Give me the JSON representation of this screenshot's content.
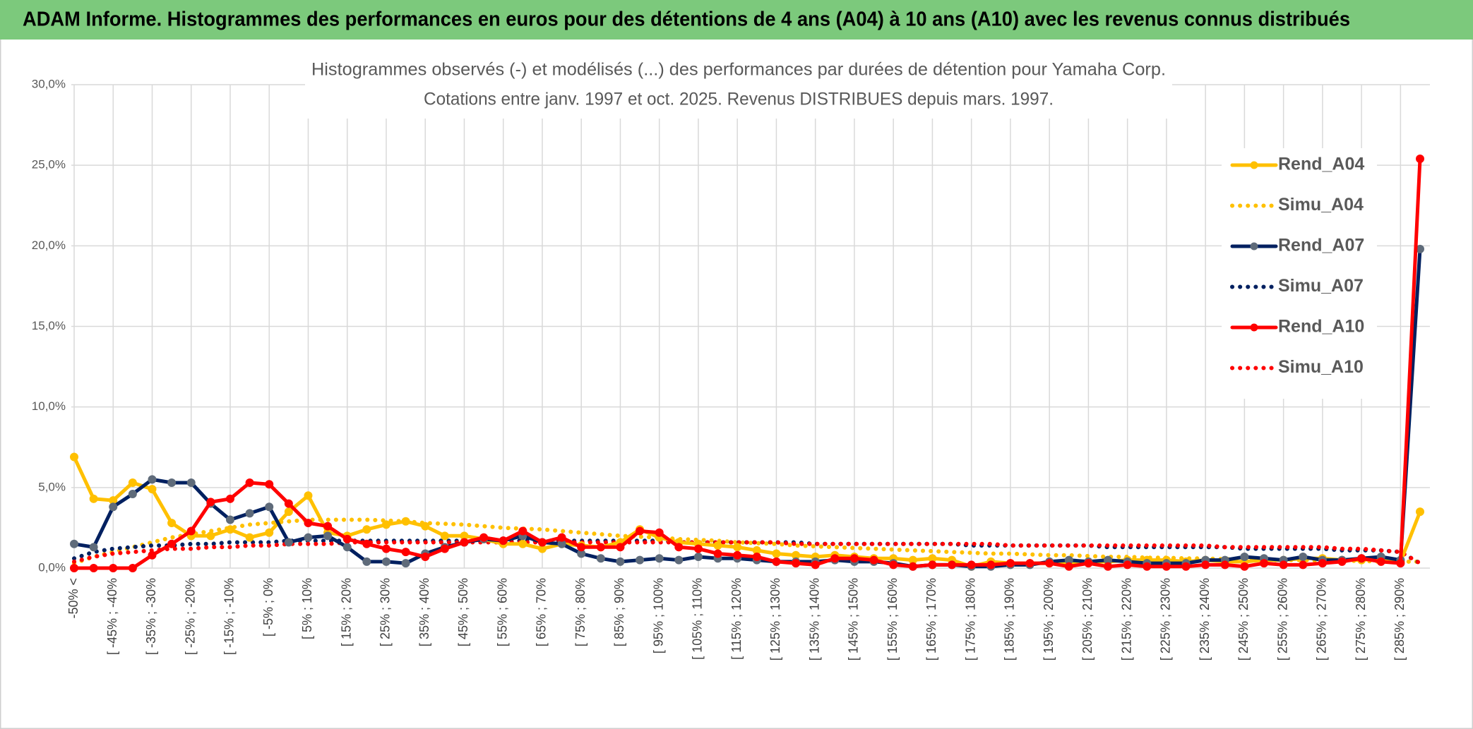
{
  "header": {
    "title": "ADAM Informe. Histogrammes des performances en euros pour des détentions de 4 ans (A04) à 10 ans (A10) avec les revenus connus distribués"
  },
  "chart_data": {
    "type": "line",
    "title": "Histogrammes observés (-) et modélisés (...) des performances par durées de détention pour Yamaha Corp.",
    "subtitle": "Cotations entre janv. 1997 et oct. 2025. Revenus DISTRIBUES depuis mars. 1997.",
    "categories": [
      "-50% <",
      null,
      "[ -45% ; -40%",
      null,
      "[ -35% ; -30%",
      null,
      "[ -25% ; -20%",
      null,
      "[ -15% ; -10%",
      null,
      "[ -5% ; 0%",
      null,
      "[ 5% ; 10%",
      null,
      "[ 15% ; 20%",
      null,
      "[ 25% ; 30%",
      null,
      "[ 35% ; 40%",
      null,
      "[ 45% ; 50%",
      null,
      "[ 55% ; 60%",
      null,
      "[ 65% ; 70%",
      null,
      "[ 75% ; 80%",
      null,
      "[ 85% ; 90%",
      null,
      "[ 95% ; 100%",
      null,
      "[ 105% ; 110%",
      null,
      "[ 115% ; 120%",
      null,
      "[ 125% ; 130%",
      null,
      "[ 135% ; 140%",
      null,
      "[ 145% ; 150%",
      null,
      "[ 155% ; 160%",
      null,
      "[ 165% ; 170%",
      null,
      "[ 175% ; 180%",
      null,
      "[ 185% ; 190%",
      null,
      "[ 195% ; 200%",
      null,
      "[ 205% ; 210%",
      null,
      "[ 215% ; 220%",
      null,
      "[ 225% ; 230%",
      null,
      "[ 235% ; 240%",
      null,
      "[ 245% ; 250%",
      null,
      "[ 255% ; 260%",
      null,
      "[ 265% ; 270%",
      null,
      "[ 275% ; 280%",
      null,
      "[ 285% ; 290%",
      null
    ],
    "series": [
      {
        "name": "Rend_A04",
        "color": "#ffc000",
        "line_style": "solid",
        "marker": true,
        "values": [
          6.9,
          4.3,
          4.2,
          5.3,
          4.9,
          2.8,
          2.0,
          2.0,
          2.4,
          1.9,
          2.2,
          3.5,
          4.5,
          2.2,
          2.0,
          2.4,
          2.7,
          2.9,
          2.6,
          2.0,
          2.0,
          1.8,
          1.5,
          1.5,
          1.2,
          1.5,
          1.4,
          1.3,
          1.6,
          2.4,
          1.9,
          1.6,
          1.5,
          1.4,
          1.3,
          1.1,
          0.9,
          0.8,
          0.7,
          0.8,
          0.7,
          0.6,
          0.6,
          0.5,
          0.6,
          0.5,
          0.1,
          0.4,
          0.3,
          0.3,
          0.3,
          0.3,
          0.4,
          0.4,
          0.5,
          0.5,
          0.5,
          0.4,
          0.5,
          0.4,
          0.4,
          0.5,
          0.5,
          0.6,
          0.6,
          0.5,
          0.5,
          0.6,
          0.4,
          3.5
        ]
      },
      {
        "name": "Simu_A04",
        "color": "#ffc000",
        "line_style": "dotted",
        "marker": false,
        "values": [
          0.3,
          0.7,
          1.0,
          1.3,
          1.6,
          1.9,
          2.1,
          2.3,
          2.5,
          2.7,
          2.8,
          2.9,
          3.0,
          3.0,
          3.0,
          3.0,
          2.95,
          2.9,
          2.8,
          2.75,
          2.7,
          2.6,
          2.5,
          2.45,
          2.4,
          2.3,
          2.2,
          2.1,
          2.0,
          1.95,
          1.9,
          1.8,
          1.75,
          1.7,
          1.6,
          1.55,
          1.5,
          1.4,
          1.35,
          1.3,
          1.25,
          1.2,
          1.15,
          1.1,
          1.05,
          1.0,
          0.95,
          0.9,
          0.9,
          0.85,
          0.8,
          0.8,
          0.75,
          0.7,
          0.7,
          0.65,
          0.65,
          0.6,
          0.6,
          0.55,
          0.55,
          0.5,
          0.5,
          0.5,
          0.45,
          0.45,
          0.45,
          0.4,
          0.4,
          0.4
        ]
      },
      {
        "name": "Rend_A07",
        "color": "#002060",
        "marker_color": "#5f6b7a",
        "line_style": "solid",
        "marker": true,
        "values": [
          1.5,
          1.3,
          3.8,
          4.6,
          5.5,
          5.3,
          5.3,
          4.0,
          3.0,
          3.4,
          3.8,
          1.6,
          1.9,
          2.0,
          1.3,
          0.4,
          0.4,
          0.3,
          0.9,
          1.3,
          1.6,
          1.8,
          1.7,
          2.0,
          1.6,
          1.5,
          0.9,
          0.6,
          0.4,
          0.5,
          0.6,
          0.5,
          0.7,
          0.6,
          0.6,
          0.5,
          0.4,
          0.4,
          0.4,
          0.5,
          0.4,
          0.4,
          0.3,
          0.1,
          0.2,
          0.2,
          0.1,
          0.1,
          0.2,
          0.2,
          0.4,
          0.5,
          0.4,
          0.5,
          0.4,
          0.3,
          0.3,
          0.3,
          0.5,
          0.5,
          0.7,
          0.6,
          0.5,
          0.7,
          0.5,
          0.5,
          0.6,
          0.7,
          0.5,
          19.8
        ]
      },
      {
        "name": "Simu_A07",
        "color": "#002060",
        "line_style": "dotted",
        "marker": false,
        "values": [
          0.6,
          1.0,
          1.2,
          1.3,
          1.4,
          1.4,
          1.5,
          1.5,
          1.6,
          1.6,
          1.6,
          1.7,
          1.7,
          1.7,
          1.7,
          1.7,
          1.7,
          1.7,
          1.7,
          1.7,
          1.7,
          1.7,
          1.7,
          1.7,
          1.7,
          1.7,
          1.7,
          1.7,
          1.7,
          1.7,
          1.7,
          1.6,
          1.6,
          1.6,
          1.6,
          1.6,
          1.6,
          1.6,
          1.5,
          1.5,
          1.5,
          1.5,
          1.5,
          1.5,
          1.5,
          1.5,
          1.4,
          1.4,
          1.4,
          1.4,
          1.4,
          1.4,
          1.4,
          1.3,
          1.3,
          1.3,
          1.3,
          1.3,
          1.3,
          1.3,
          1.2,
          1.2,
          1.2,
          1.2,
          1.2,
          1.1,
          1.1,
          1.1,
          1.0,
          0.3
        ]
      },
      {
        "name": "Rend_A10",
        "color": "#ff0000",
        "line_style": "solid",
        "marker": true,
        "values": [
          0,
          0,
          0,
          0,
          0.8,
          1.5,
          2.3,
          4.1,
          4.3,
          5.3,
          5.2,
          4.0,
          2.8,
          2.6,
          1.8,
          1.5,
          1.2,
          1.0,
          0.7,
          1.2,
          1.6,
          1.9,
          1.7,
          2.3,
          1.6,
          1.9,
          1.3,
          1.3,
          1.3,
          2.3,
          2.2,
          1.3,
          1.2,
          0.9,
          0.8,
          0.7,
          0.4,
          0.3,
          0.2,
          0.6,
          0.6,
          0.5,
          0.2,
          0.1,
          0.2,
          0.2,
          0.2,
          0.2,
          0.3,
          0.3,
          0.3,
          0.1,
          0.3,
          0.1,
          0.2,
          0.1,
          0.1,
          0.1,
          0.2,
          0.2,
          0.1,
          0.3,
          0.2,
          0.2,
          0.3,
          0.4,
          0.6,
          0.4,
          0.3,
          25.4
        ]
      },
      {
        "name": "Simu_A10",
        "color": "#ff0000",
        "line_style": "dotted",
        "marker": false,
        "values": [
          0.4,
          0.7,
          0.9,
          1.0,
          1.1,
          1.2,
          1.2,
          1.3,
          1.3,
          1.4,
          1.4,
          1.5,
          1.5,
          1.5,
          1.6,
          1.6,
          1.6,
          1.6,
          1.6,
          1.6,
          1.6,
          1.6,
          1.6,
          1.6,
          1.6,
          1.6,
          1.6,
          1.6,
          1.6,
          1.6,
          1.6,
          1.6,
          1.6,
          1.6,
          1.6,
          1.6,
          1.6,
          1.5,
          1.5,
          1.5,
          1.5,
          1.5,
          1.5,
          1.5,
          1.5,
          1.5,
          1.5,
          1.5,
          1.4,
          1.4,
          1.4,
          1.4,
          1.4,
          1.4,
          1.4,
          1.4,
          1.4,
          1.4,
          1.4,
          1.3,
          1.3,
          1.3,
          1.3,
          1.3,
          1.3,
          1.2,
          1.2,
          1.1,
          1.0,
          0.3
        ]
      }
    ],
    "ylim": [
      0,
      30
    ],
    "yticks": [
      {
        "value": 0,
        "label": "0,0%"
      },
      {
        "value": 5,
        "label": "5,0%"
      },
      {
        "value": 10,
        "label": "10,0%"
      },
      {
        "value": 15,
        "label": "15,0%"
      },
      {
        "value": 20,
        "label": "20,0%"
      },
      {
        "value": 25,
        "label": "25,0%"
      },
      {
        "value": 30,
        "label": "30,0%"
      }
    ],
    "grid": true,
    "legend": "right"
  }
}
